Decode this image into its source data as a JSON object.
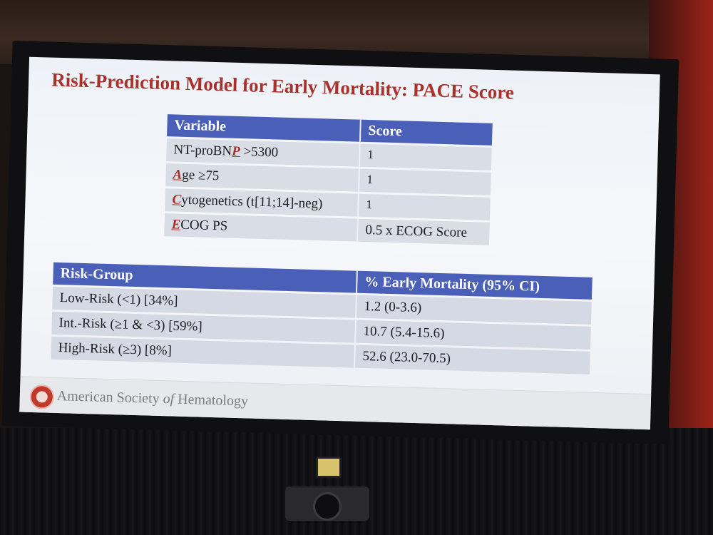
{
  "slide": {
    "title": "Risk-Prediction Model for Early Mortality: PACE Score",
    "footer": {
      "org_before": "American Society ",
      "org_of": "of",
      "org_after": " Hematology"
    }
  },
  "variables_table": {
    "headers": [
      "Variable",
      "Score"
    ],
    "rows": [
      {
        "before": "NT-proBN",
        "initial": "P",
        "after": " >5300",
        "score": "1"
      },
      {
        "before": "",
        "initial": "A",
        "after": "ge ≥75",
        "score": "1"
      },
      {
        "before": "",
        "initial": "C",
        "after": "ytogenetics (t[11;14]-neg)",
        "score": "1"
      },
      {
        "before": "",
        "initial": "E",
        "after": "COG PS",
        "score": "0.5 x ECOG Score"
      }
    ]
  },
  "risk_table": {
    "headers": [
      "Risk-Group",
      "% Early Mortality (95% CI)"
    ],
    "rows": [
      {
        "group": "Low-Risk (<1) [34%]",
        "mortality": "1.2 (0-3.6)"
      },
      {
        "group": "Int.-Risk (≥1 & <3) [59%]",
        "mortality": "10.7 (5.4-15.6)"
      },
      {
        "group": "High-Risk (≥3) [8%]",
        "mortality": "52.6 (23.0-70.5)"
      }
    ]
  }
}
